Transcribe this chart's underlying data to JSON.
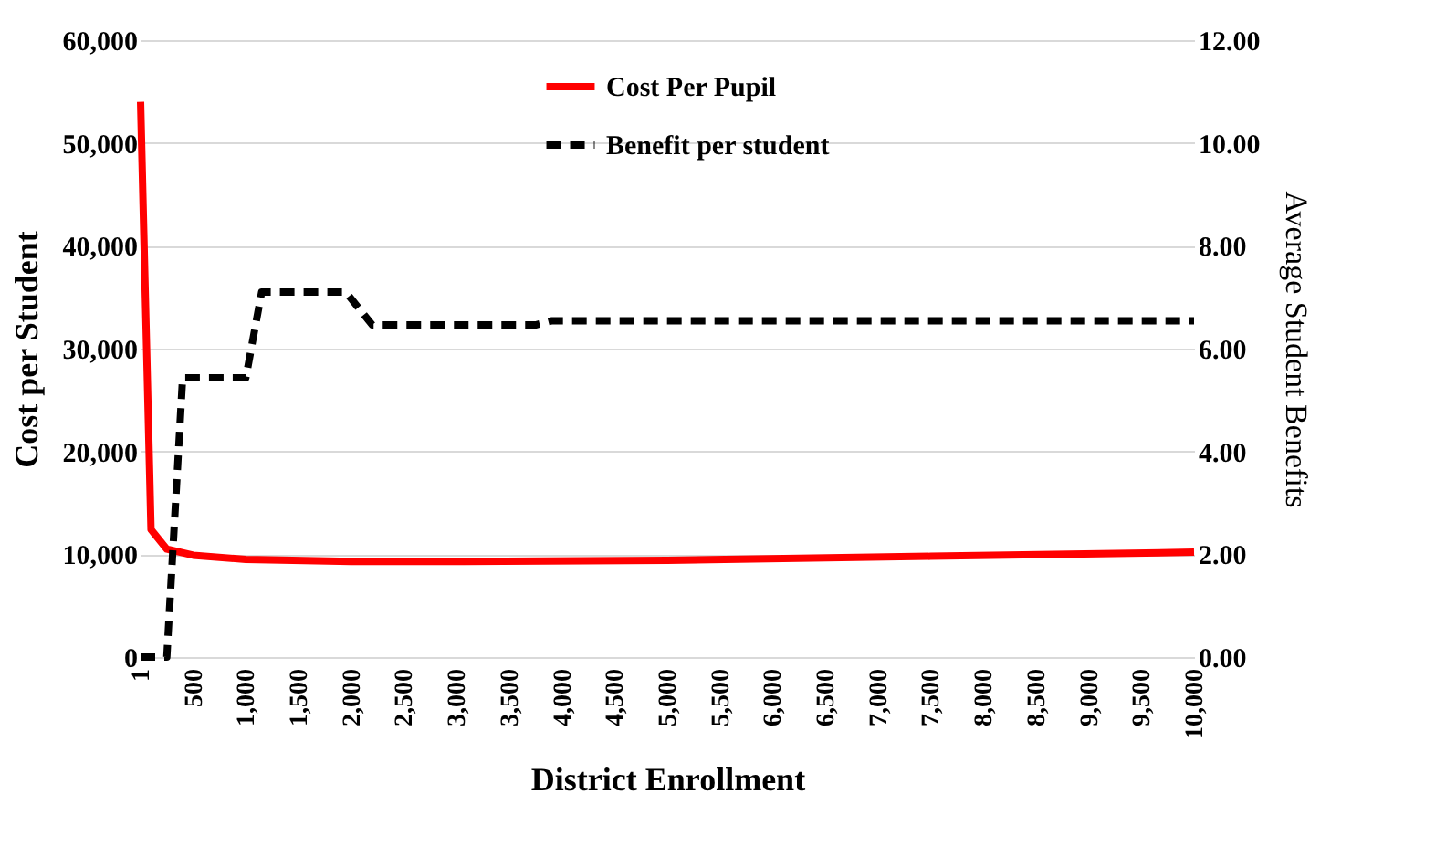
{
  "chart_data": {
    "type": "line",
    "xlabel": "District Enrollment",
    "ylabel": "Cost per Student",
    "y2label": "Average Student Benefits",
    "xlim": [
      1,
      10000
    ],
    "xticks": [
      1,
      500,
      {
        "value": 1000,
        "label": "1,000"
      },
      {
        "value": 1500,
        "label": "1,500"
      },
      {
        "value": 2000,
        "label": "2,000"
      },
      {
        "value": 2500,
        "label": "2,500"
      },
      {
        "value": 3000,
        "label": "3,000"
      },
      {
        "value": 3500,
        "label": "3,500"
      },
      {
        "value": 4000,
        "label": "4,000"
      },
      {
        "value": 4500,
        "label": "4,500"
      },
      {
        "value": 5000,
        "label": "5,000"
      },
      {
        "value": 5500,
        "label": "5,500"
      },
      {
        "value": 6000,
        "label": "6,000"
      },
      {
        "value": 6500,
        "label": "6,500"
      },
      {
        "value": 7000,
        "label": "7,000"
      },
      {
        "value": 7500,
        "label": "7,500"
      },
      {
        "value": 8000,
        "label": "8,000"
      },
      {
        "value": 8500,
        "label": "8,500"
      },
      {
        "value": 9000,
        "label": "9,000"
      },
      {
        "value": 9500,
        "label": "9,500"
      },
      {
        "value": 10000,
        "label": "10,000"
      }
    ],
    "ylim": [
      0,
      60000
    ],
    "yticks": [
      0,
      {
        "value": 10000,
        "label": "10,000"
      },
      {
        "value": 20000,
        "label": "20,000"
      },
      {
        "value": 30000,
        "label": "30,000"
      },
      {
        "value": 40000,
        "label": "40,000"
      },
      {
        "value": 50000,
        "label": "50,000"
      },
      {
        "value": 60000,
        "label": "60,000"
      }
    ],
    "y2lim": [
      0,
      12
    ],
    "y2ticks": [
      {
        "value": 0,
        "label": "0.00"
      },
      {
        "value": 2,
        "label": "2.00"
      },
      {
        "value": 4,
        "label": "4.00"
      },
      {
        "value": 6,
        "label": "6.00"
      },
      {
        "value": 8,
        "label": "8.00"
      },
      {
        "value": 10,
        "label": "10.00"
      },
      {
        "value": 12,
        "label": "12.00"
      }
    ],
    "grid": "y",
    "legend": "top right",
    "series": [
      {
        "name": "Cost Per Pupil",
        "color": "#ff0000",
        "line_style": "solid",
        "x": [
          1,
          100,
          250,
          500,
          1000,
          2000,
          3000,
          5000,
          7500,
          10000
        ],
        "values": [
          54000,
          12400,
          10500,
          9900,
          9500,
          9300,
          9300,
          9400,
          9800,
          10200
        ]
      },
      {
        "name": "Benefit per student",
        "color": "#000000",
        "line_style": "dashed",
        "axis": "y2",
        "x": [
          1,
          250,
          400,
          1000,
          1150,
          1950,
          2200,
          3750,
          3900,
          10000
        ],
        "values": [
          0,
          0,
          5.43,
          5.43,
          7.1,
          7.1,
          6.46,
          6.46,
          6.54,
          6.54
        ]
      }
    ]
  }
}
